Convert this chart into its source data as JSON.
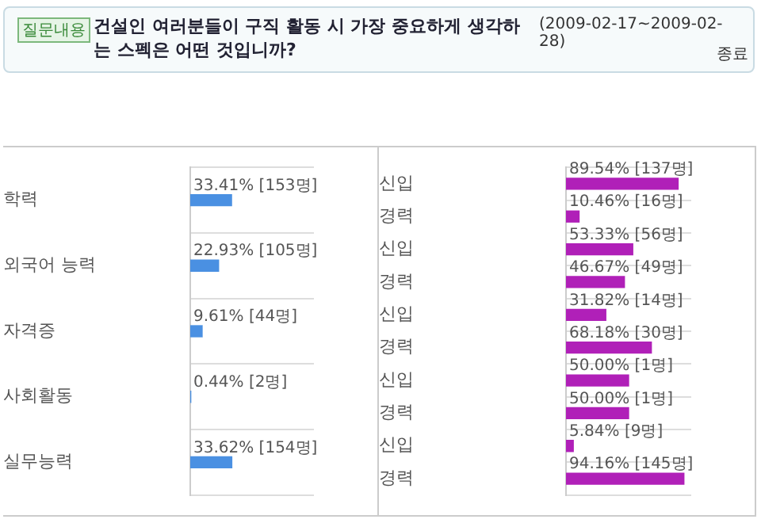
{
  "chart_data": [
    {
      "type": "bar",
      "orientation": "horizontal",
      "title": "건설인 여러분들이 구직 활동 시 가장 중요하게 생각하는 스펙은 어떤 것입니까?",
      "annotations": [
        "질문내용"
      ],
      "categories": [
        "학력",
        "외국어 능력",
        "자격증",
        "사회활동",
        "실무능력"
      ],
      "values": [
        33.41,
        22.93,
        9.61,
        0.44,
        33.62
      ],
      "value_labels": [
        "33.41% [153명]",
        "22.93% [105명]",
        "9.61% [44명]",
        "0.44% [2명]",
        "33.62% [154명]"
      ],
      "color": "#4a90e2",
      "xlim": [
        0,
        100
      ],
      "grid": "y",
      "tick_labels": "y"
    },
    {
      "type": "bar",
      "orientation": "horizontal",
      "subtitle": "(2009-02-17~2009-02-28)",
      "annotations": [
        "종료"
      ],
      "categories": [
        "신입",
        "경력",
        "신입",
        "경력",
        "신입",
        "경력",
        "신입",
        "경력",
        "신입",
        "경력"
      ],
      "values": [
        89.54,
        10.46,
        53.33,
        46.67,
        31.82,
        68.18,
        50.0,
        50.0,
        5.84,
        94.16
      ],
      "value_labels": [
        "89.54% [137명]",
        "10.46% [16명]",
        "53.33% [56명]",
        "46.67% [49명]",
        "31.82% [14명]",
        "68.18% [30명]",
        "50.00% [1명]",
        "50.00% [1명]",
        "5.84% [9명]",
        "94.16% [145명]"
      ],
      "color": "#b020b8",
      "xlim": [
        0,
        100
      ],
      "grid": "y",
      "tick_labels": "y"
    }
  ]
}
